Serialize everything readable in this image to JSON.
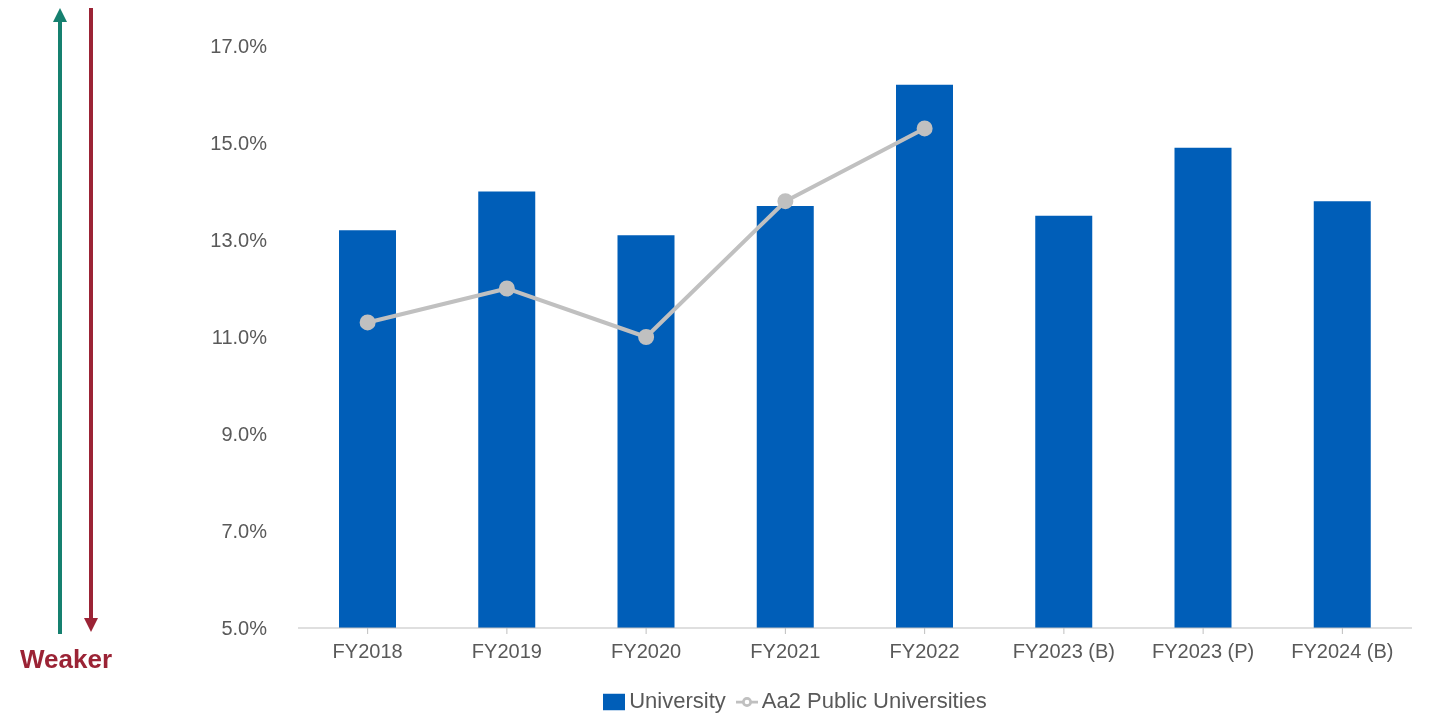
{
  "chart_data": {
    "type": "bar",
    "categories": [
      "FY2018",
      "FY2019",
      "FY2020",
      "FY2021",
      "FY2022",
      "FY2023 (B)",
      "FY2023 (P)",
      "FY2024 (B)"
    ],
    "series": [
      {
        "name": "University",
        "color": "#005eb8",
        "values": [
          13.2,
          14.0,
          13.1,
          13.7,
          16.2,
          13.5,
          14.9,
          13.8
        ]
      },
      {
        "name": "Aa2 Public Universities",
        "type": "line",
        "color": "#c0c0c0",
        "values": [
          11.3,
          12.0,
          11.0,
          13.8,
          15.3,
          null,
          null,
          null
        ]
      }
    ],
    "ylim": [
      5,
      17
    ],
    "yticks": [
      {
        "value": 5,
        "label": "5.0%"
      },
      {
        "value": 7,
        "label": "7.0%"
      },
      {
        "value": 9,
        "label": "9.0%"
      },
      {
        "value": 11,
        "label": "11.0%"
      },
      {
        "value": 13,
        "label": "13.0%"
      },
      {
        "value": 15,
        "label": "15.0%"
      },
      {
        "value": 17,
        "label": "17.0%"
      }
    ],
    "grid": false,
    "legend": "bottom",
    "marker": "circle",
    "line_style": "solid",
    "annotations": [
      "Weaker"
    ]
  }
}
